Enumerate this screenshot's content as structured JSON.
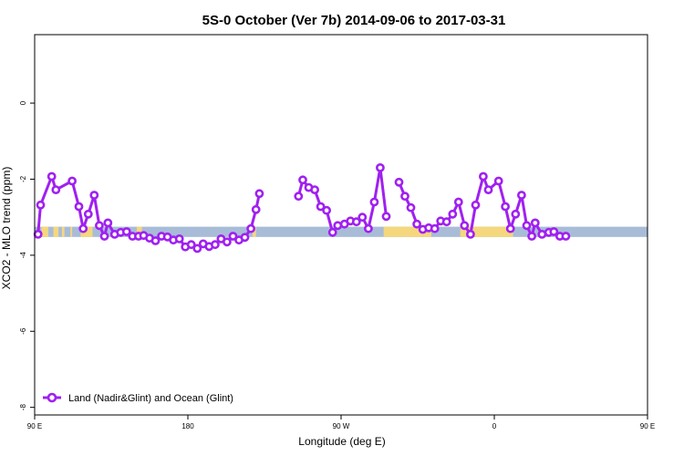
{
  "chart_data": {
    "type": "line",
    "title": "5S-0 October (Ver 7b)   2014-09-06 to 2017-03-31",
    "xlabel": "Longitude (deg E)",
    "ylabel": "XCO2 - MLO trend (ppm)",
    "xlim": [
      90,
      450
    ],
    "ylim": [
      -8.2,
      1.8
    ],
    "x_ticks": [
      {
        "value": 90,
        "label": "90 E"
      },
      {
        "value": 180,
        "label": "180"
      },
      {
        "value": 270,
        "label": "90 W"
      },
      {
        "value": 360,
        "label": "0"
      },
      {
        "value": 450,
        "label": "90 E"
      },
      {
        "value": 540,
        "label": "180"
      }
    ],
    "y_ticks": [
      {
        "value": 0,
        "label": "0"
      },
      {
        "value": -2,
        "label": "-2"
      },
      {
        "value": -4,
        "label": "-4"
      },
      {
        "value": -6,
        "label": "-6"
      },
      {
        "value": -8,
        "label": "-8"
      }
    ],
    "land_ocean_band": {
      "y_top": -3.25,
      "y_bottom": -3.52,
      "ocean_color": "#a8bcd8",
      "land_color": "#f5d77e",
      "land_segments": [
        [
          94,
          98
        ],
        [
          101,
          104
        ],
        [
          106,
          107.5
        ],
        [
          111,
          112
        ],
        [
          117,
          124
        ],
        [
          150,
          153
        ],
        [
          218,
          220
        ],
        [
          295,
          323
        ],
        [
          340,
          371
        ],
        [
          462,
          468
        ],
        [
          471,
          473
        ],
        [
          478,
          481
        ],
        [
          493,
          496
        ]
      ]
    },
    "series": [
      {
        "name": "Land (Nadir&Glint) and Ocean (Glint)",
        "color": "#a020f0",
        "segments": [
          [
            [
              92,
              -3.45
            ],
            [
              93.5,
              -2.68
            ],
            [
              100,
              -1.93
            ],
            [
              102.5,
              -2.28
            ],
            [
              112,
              -2.05
            ],
            [
              116,
              -2.72
            ],
            [
              118.5,
              -3.3
            ],
            [
              121.5,
              -2.92
            ],
            [
              125,
              -2.42
            ],
            [
              128,
              -3.22
            ],
            [
              131,
              -3.5
            ],
            [
              133,
              -3.15
            ],
            [
              137,
              -3.45
            ],
            [
              140.5,
              -3.4
            ],
            [
              144,
              -3.38
            ],
            [
              147.5,
              -3.5
            ],
            [
              151,
              -3.5
            ],
            [
              154,
              -3.48
            ],
            [
              157.5,
              -3.55
            ],
            [
              161,
              -3.62
            ],
            [
              164.5,
              -3.5
            ],
            [
              168,
              -3.52
            ],
            [
              171.5,
              -3.6
            ],
            [
              175,
              -3.57
            ],
            [
              178.5,
              -3.78
            ],
            [
              182,
              -3.72
            ],
            [
              185.5,
              -3.82
            ],
            [
              189,
              -3.7
            ],
            [
              192.5,
              -3.77
            ],
            [
              196,
              -3.72
            ],
            [
              199.5,
              -3.57
            ],
            [
              203,
              -3.65
            ],
            [
              206.5,
              -3.5
            ],
            [
              210,
              -3.6
            ],
            [
              213.5,
              -3.53
            ],
            [
              217,
              -3.3
            ],
            [
              220,
              -2.8
            ],
            [
              222,
              -2.38
            ]
          ],
          [
            [
              245,
              -2.45
            ],
            [
              247.5,
              -2.02
            ],
            [
              251,
              -2.22
            ],
            [
              254.5,
              -2.28
            ],
            [
              258,
              -2.72
            ],
            [
              261.5,
              -2.82
            ],
            [
              265,
              -3.4
            ],
            [
              268,
              -3.22
            ],
            [
              272,
              -3.18
            ],
            [
              275.5,
              -3.1
            ],
            [
              279,
              -3.12
            ],
            [
              282.5,
              -3.0
            ],
            [
              286,
              -3.3
            ],
            [
              289.5,
              -2.6
            ],
            [
              293,
              -1.7
            ],
            [
              296.5,
              -2.98
            ]
          ],
          [
            [
              304,
              -2.08
            ],
            [
              307.5,
              -2.45
            ],
            [
              311,
              -2.75
            ],
            [
              314.5,
              -3.18
            ],
            [
              318,
              -3.32
            ],
            [
              321.5,
              -3.28
            ],
            [
              325,
              -3.3
            ],
            [
              328.5,
              -3.1
            ],
            [
              332,
              -3.12
            ],
            [
              335.5,
              -2.92
            ],
            [
              339,
              -2.6
            ],
            [
              342.5,
              -3.22
            ],
            [
              346,
              -3.45
            ],
            [
              349,
              -2.68
            ],
            [
              353.5,
              -1.93
            ],
            [
              356.5,
              -2.28
            ],
            [
              362.5,
              -2.05
            ],
            [
              366.5,
              -2.72
            ],
            [
              369.5,
              -3.3
            ],
            [
              372.5,
              -2.92
            ],
            [
              376,
              -2.42
            ],
            [
              379,
              -3.22
            ],
            [
              382,
              -3.5
            ],
            [
              384,
              -3.15
            ],
            [
              388,
              -3.45
            ],
            [
              392,
              -3.4
            ],
            [
              395,
              -3.38
            ],
            [
              398.5,
              -3.5
            ],
            [
              402,
              -3.5
            ]
          ]
        ]
      }
    ],
    "legend": {
      "position": "bottom-left",
      "entries": [
        "Land (Nadir&Glint) and Ocean (Glint)"
      ]
    },
    "grid": false
  }
}
